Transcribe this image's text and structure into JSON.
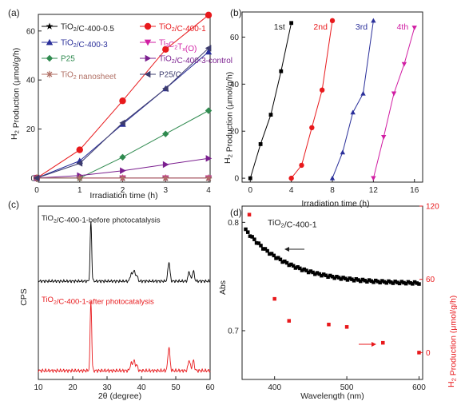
{
  "chart_data": [
    {
      "panel": "(a)",
      "type": "line",
      "xlabel": "Irradiation time (h)",
      "ylabel": "H2 Production (μmol/g/h)",
      "xlim": [
        0,
        4
      ],
      "ylim": [
        -2,
        72
      ],
      "xticks": [
        0,
        1,
        2,
        3,
        4
      ],
      "yticks": [
        0,
        20,
        40,
        60
      ],
      "grid": false,
      "legend_position": "top-left",
      "series": [
        {
          "name": "TiO2/C-400-0.5",
          "color": "#000000",
          "marker": "star",
          "x": [
            0,
            1,
            2,
            3,
            4
          ],
          "y": [
            0,
            0,
            0,
            0,
            0
          ]
        },
        {
          "name": "TiO2/C-400-1",
          "color": "#e8191c",
          "marker": "circle",
          "x": [
            0,
            1,
            2,
            3,
            4
          ],
          "y": [
            0,
            11.5,
            31.5,
            52.5,
            66.5
          ]
        },
        {
          "name": "TiO2/C-400-3",
          "color": "#2a2f9a",
          "marker": "triangle-up",
          "x": [
            0,
            1,
            2,
            3,
            4
          ],
          "y": [
            0,
            7,
            22,
            36.5,
            51.5
          ]
        },
        {
          "name": "Ti3C2Tx(O)",
          "color": "#d11ea3",
          "marker": "triangle-down",
          "x": [
            0,
            1,
            2,
            3,
            4
          ],
          "y": [
            0,
            0,
            0,
            0,
            0
          ]
        },
        {
          "name": "P25",
          "color": "#2f8a4f",
          "marker": "diamond",
          "x": [
            0,
            1,
            2,
            3,
            4
          ],
          "y": [
            0,
            0,
            8.5,
            18,
            27.5
          ]
        },
        {
          "name": "TiO2/C-400-3-control",
          "color": "#7b1f8f",
          "marker": "triangle-right",
          "x": [
            0,
            1,
            2,
            3,
            4
          ],
          "y": [
            0,
            1,
            3,
            5.5,
            8
          ]
        },
        {
          "name": "TiO2 nanosheet",
          "color": "#b06f64",
          "marker": "asterisk",
          "x": [
            0,
            1,
            2,
            3,
            4
          ],
          "y": [
            0,
            0,
            0,
            0,
            0
          ]
        },
        {
          "name": "P25/C",
          "color": "#3d3c6e",
          "marker": "triangle-left",
          "x": [
            0,
            1,
            2,
            3,
            4
          ],
          "y": [
            0,
            6,
            22.5,
            36.5,
            53
          ]
        }
      ]
    },
    {
      "panel": "(b)",
      "type": "line",
      "xlabel": "Irradiation time (h)",
      "ylabel": "H2 Production (μmol/g/h)",
      "xlim": [
        -0.8,
        16.8
      ],
      "ylim": [
        -2,
        70
      ],
      "xticks": [
        0,
        4,
        8,
        12,
        16
      ],
      "yticks": [
        0,
        20,
        40,
        60
      ],
      "annotations": [
        "1st",
        "2nd",
        "3rd",
        "4th"
      ],
      "series": [
        {
          "name": "1st",
          "color": "#000000",
          "marker": "square",
          "x": [
            0,
            1,
            2,
            3,
            4
          ],
          "y": [
            0,
            14.5,
            27,
            45.5,
            66
          ]
        },
        {
          "name": "2nd",
          "color": "#e8191c",
          "marker": "circle",
          "x": [
            4,
            5,
            6,
            7,
            8
          ],
          "y": [
            0,
            5.5,
            21.5,
            37.5,
            67
          ]
        },
        {
          "name": "3rd",
          "color": "#2a2f9a",
          "marker": "triangle-up",
          "x": [
            8,
            9,
            10,
            11,
            12
          ],
          "y": [
            0,
            11,
            28,
            36,
            67
          ]
        },
        {
          "name": "4th",
          "color": "#d11ea3",
          "marker": "triangle-down",
          "x": [
            12,
            13,
            14,
            15,
            16
          ],
          "y": [
            0,
            17.5,
            36,
            48.5,
            64
          ]
        }
      ]
    },
    {
      "panel": "(c)",
      "type": "line",
      "xlabel": "2θ (degree)",
      "ylabel": "CPS",
      "xlim": [
        10,
        60
      ],
      "xticks": [
        10,
        20,
        30,
        40,
        50,
        60
      ],
      "series": [
        {
          "name": "TiO2/C-400-1-before photocatalysis",
          "color": "#000000",
          "peaks": [
            [
              25.3,
              1.0
            ],
            [
              37.0,
              0.12
            ],
            [
              37.8,
              0.18
            ],
            [
              38.6,
              0.1
            ],
            [
              48.0,
              0.32
            ],
            [
              53.9,
              0.16
            ],
            [
              55.1,
              0.17
            ]
          ]
        },
        {
          "name": "TiO2/C-400-1-after photocatalysis",
          "color": "#e8191c",
          "peaks": [
            [
              25.3,
              1.0
            ],
            [
              37.0,
              0.1
            ],
            [
              37.8,
              0.14
            ],
            [
              38.6,
              0.08
            ],
            [
              48.0,
              0.33
            ],
            [
              53.9,
              0.15
            ],
            [
              55.1,
              0.14
            ]
          ]
        }
      ]
    },
    {
      "panel": "(d)",
      "type": "scatter",
      "title": "TiO2/C-400-1",
      "xlabel": "Wavelength (nm)",
      "ylabel": "Abs",
      "ylabel_right": "H2 Production (μmol/g/h)",
      "xlim": [
        355,
        605
      ],
      "xticks": [
        400,
        500,
        600
      ],
      "ylim_left": [
        0.655,
        0.815
      ],
      "yticks_left": [
        0.7,
        0.8
      ],
      "ylim_right": [
        -22,
        120
      ],
      "yticks_right": [
        0,
        60,
        120
      ],
      "series": [
        {
          "name": "Abs",
          "color": "#000000",
          "marker": "square",
          "axis": "left",
          "curve": {
            "start_x": 360,
            "end_x": 600,
            "step": 3,
            "base": 0.743,
            "amp": 0.05,
            "decay": 60
          }
        },
        {
          "name": "H2 Production",
          "color": "#e8191c",
          "marker": "square",
          "axis": "right",
          "x": [
            365,
            400,
            420,
            475,
            500,
            550,
            600
          ],
          "y": [
            113,
            44,
            26,
            23,
            21,
            8,
            0
          ]
        }
      ]
    }
  ]
}
